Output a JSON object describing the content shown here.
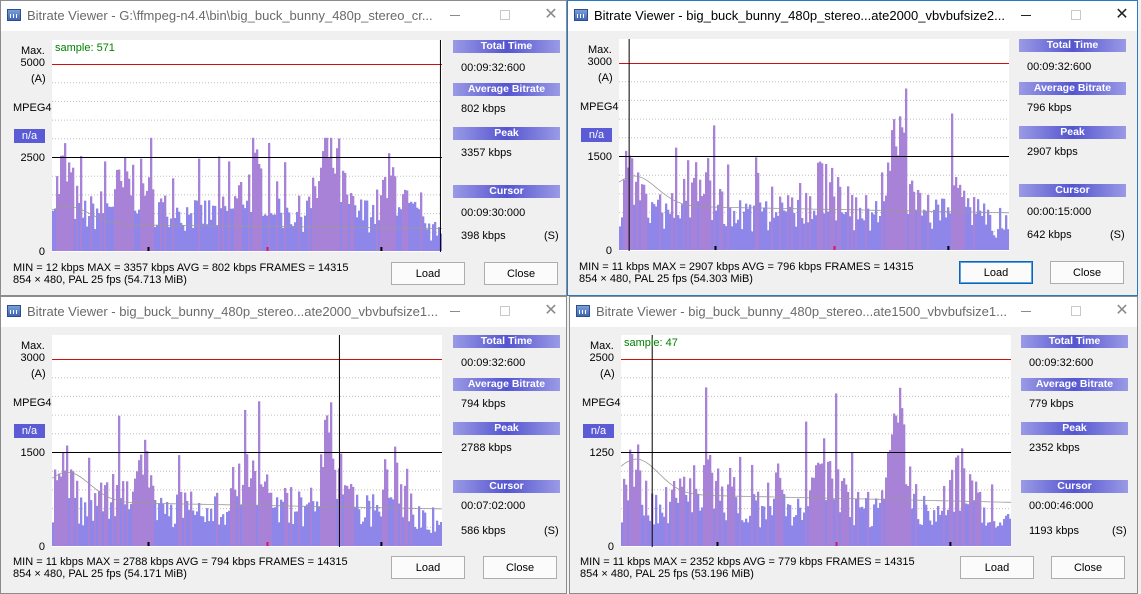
{
  "windows": [
    {
      "id": "w1",
      "active": false,
      "title": "Bitrate Viewer - G:\\ffmpeg-n4.4\\bin\\big_buck_bunny_480p_stereo_cr...",
      "axis": {
        "max_label": "Max.",
        "max_value": "5000",
        "unit": "(A)",
        "codec": "MPEG4",
        "mode": "n/a",
        "mid_value": "2500",
        "zero": "0"
      },
      "sample_label": "sample: 571",
      "panel": {
        "total_time_label": "Total Time",
        "total_time": "00:09:32:600",
        "avg_label": "Average Bitrate",
        "avg": "802 kbps",
        "peak_label": "Peak",
        "peak": "3357 kbps",
        "cursor_label": "Cursor",
        "cursor_time": "00:09:30:000",
        "cursor_rate": "398 kbps",
        "cursor_key": "(S)"
      },
      "stats_line1": "MIN = 12 kbps  MAX = 3357 kbps  AVG = 802 kbps  FRAMES = 14315",
      "stats_line2": "854 × 480, PAL 25 fps    (54.713 MiB)",
      "load_label": "Load",
      "close_label": "Close",
      "chart_data": {
        "type": "bar",
        "ylim": [
          0,
          5000
        ],
        "max_line": 5000,
        "mid_line": 2500,
        "avg": 802,
        "peak": 3357,
        "cursor_fraction": 0.996
      }
    },
    {
      "id": "w2",
      "active": true,
      "title": "Bitrate Viewer - big_buck_bunny_480p_stereo...ate2000_vbvbufsize2...",
      "axis": {
        "max_label": "Max.",
        "max_value": "3000",
        "unit": "(A)",
        "codec": "MPEG4",
        "mode": "n/a",
        "mid_value": "1500",
        "zero": "0"
      },
      "sample_label": "",
      "panel": {
        "total_time_label": "Total Time",
        "total_time": "00:09:32:600",
        "avg_label": "Average Bitrate",
        "avg": "796 kbps",
        "peak_label": "Peak",
        "peak": "2907 kbps",
        "cursor_label": "Cursor",
        "cursor_time": "00:00:15:000",
        "cursor_rate": "642 kbps",
        "cursor_key": "(S)"
      },
      "stats_line1": "MIN = 11 kbps  MAX = 2907 kbps  AVG = 796 kbps  FRAMES = 14315",
      "stats_line2": "854 × 480, PAL 25 fps    (54.303 MiB)",
      "load_label": "Load",
      "close_label": "Close",
      "chart_data": {
        "type": "bar",
        "ylim": [
          0,
          3000
        ],
        "max_line": 3000,
        "mid_line": 1500,
        "avg": 796,
        "peak": 2907,
        "cursor_fraction": 0.026
      }
    },
    {
      "id": "w3",
      "active": false,
      "title": "Bitrate Viewer - big_buck_bunny_480p_stereo...ate2000_vbvbufsize1...",
      "axis": {
        "max_label": "Max.",
        "max_value": "3000",
        "unit": "(A)",
        "codec": "MPEG4",
        "mode": "n/a",
        "mid_value": "1500",
        "zero": "0"
      },
      "sample_label": "",
      "panel": {
        "total_time_label": "Total Time",
        "total_time": "00:09:32:600",
        "avg_label": "Average Bitrate",
        "avg": "794 kbps",
        "peak_label": "Peak",
        "peak": "2788 kbps",
        "cursor_label": "Cursor",
        "cursor_time": "00:07:02:000",
        "cursor_rate": "586 kbps",
        "cursor_key": "(S)"
      },
      "stats_line1": "MIN = 11 kbps  MAX = 2788 kbps  AVG = 794 kbps  FRAMES = 14315",
      "stats_line2": "854 × 480, PAL 25 fps    (54.171 MiB)",
      "load_label": "Load",
      "close_label": "Close",
      "chart_data": {
        "type": "bar",
        "ylim": [
          0,
          3000
        ],
        "max_line": 3000,
        "mid_line": 1500,
        "avg": 794,
        "peak": 2788,
        "cursor_fraction": 0.737
      }
    },
    {
      "id": "w4",
      "active": false,
      "title": "Bitrate Viewer - big_buck_bunny_480p_stereo...ate1500_vbvbufsize1...",
      "axis": {
        "max_label": "Max.",
        "max_value": "2500",
        "unit": "(A)",
        "codec": "MPEG4",
        "mode": "n/a",
        "mid_value": "1250",
        "zero": "0"
      },
      "sample_label": "sample: 47",
      "panel": {
        "total_time_label": "Total Time",
        "total_time": "00:09:32:600",
        "avg_label": "Average Bitrate",
        "avg": "779 kbps",
        "peak_label": "Peak",
        "peak": "2352 kbps",
        "cursor_label": "Cursor",
        "cursor_time": "00:00:46:000",
        "cursor_rate": "1193 kbps",
        "cursor_key": "(S)"
      },
      "stats_line1": "MIN = 11 kbps  MAX = 2352 kbps  AVG = 779 kbps  FRAMES = 14315",
      "stats_line2": "854 × 480, PAL 25 fps    (53.196 MiB)",
      "load_label": "Load",
      "close_label": "Close",
      "chart_data": {
        "type": "bar",
        "ylim": [
          0,
          2500
        ],
        "max_line": 2500,
        "mid_line": 1250,
        "avg": 779,
        "peak": 2352,
        "cursor_fraction": 0.08
      }
    }
  ]
}
